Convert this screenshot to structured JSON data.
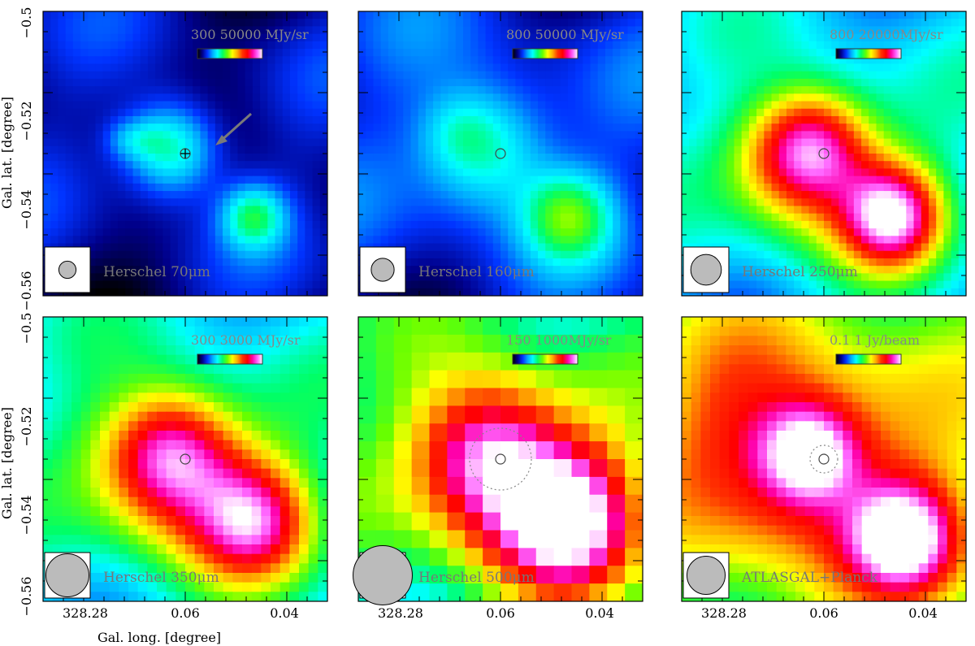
{
  "axes": {
    "ylabel": "Gal. lat. [degree]",
    "xlabel": "Gal. long. [degree]",
    "yticks": [
      "−0.5",
      "−0.52",
      "−0.54",
      "−0.56"
    ],
    "xticks": [
      "328.28",
      "0.06",
      "0.04"
    ]
  },
  "panels": [
    {
      "id": "p70",
      "label": "Herschel  70μm",
      "cbar": "300 50000 MJy/sr",
      "beam": 0.18,
      "blobs": [
        [
          0.45,
          0.48,
          0.35,
          0.12
        ],
        [
          0.74,
          0.72,
          0.26,
          0.08
        ],
        [
          0.28,
          0.45,
          0.08,
          0.05
        ],
        [
          0.36,
          0.45,
          0.06,
          0.05
        ]
      ],
      "base": 0.08,
      "crosshair": true,
      "arrow": true,
      "dotted_ring": false
    },
    {
      "id": "p160",
      "label": "Herschel  160μm",
      "cbar": "800  50000 MJy/sr",
      "beam": 0.24,
      "blobs": [
        [
          0.45,
          0.48,
          0.3,
          0.16
        ],
        [
          0.74,
          0.72,
          0.28,
          0.11
        ],
        [
          0.35,
          0.42,
          0.07,
          0.09
        ]
      ],
      "base": 0.12,
      "crosshair": false,
      "arrow": false,
      "dotted_ring": false
    },
    {
      "id": "p250",
      "label": "Herschel  250μm",
      "cbar": "800  20000MJy/sr",
      "beam": 0.32,
      "blobs": [
        [
          0.45,
          0.48,
          0.55,
          0.14
        ],
        [
          0.74,
          0.72,
          0.6,
          0.12
        ],
        [
          0.55,
          0.6,
          0.25,
          0.22
        ],
        [
          0.3,
          0.55,
          0.1,
          0.15
        ]
      ],
      "base": 0.25,
      "crosshair": false,
      "arrow": false,
      "dotted_ring": false
    },
    {
      "id": "p350",
      "label": "Herschel  350μm",
      "cbar": "300 3000 MJy/sr",
      "beam": 0.45,
      "blobs": [
        [
          0.45,
          0.48,
          0.45,
          0.15
        ],
        [
          0.74,
          0.72,
          0.45,
          0.14
        ],
        [
          0.55,
          0.6,
          0.3,
          0.22
        ],
        [
          0.3,
          0.5,
          0.1,
          0.18
        ]
      ],
      "base": 0.28,
      "crosshair": false,
      "arrow": false,
      "dotted_ring": false
    },
    {
      "id": "p500",
      "label": "Herschel  500μm",
      "cbar": "150  1000MJy/sr",
      "beam": 0.62,
      "blobs": [
        [
          0.45,
          0.48,
          0.5,
          0.18
        ],
        [
          0.74,
          0.72,
          0.55,
          0.17
        ],
        [
          0.58,
          0.6,
          0.25,
          0.25
        ]
      ],
      "base": 0.35,
      "crosshair": false,
      "arrow": false,
      "dotted_ring": true
    },
    {
      "id": "patl",
      "label": "ATLASGAL+Planck",
      "cbar": "0.1   1 Jy/beam",
      "beam": 0.4,
      "blobs": [
        [
          0.45,
          0.48,
          0.45,
          0.12
        ],
        [
          0.78,
          0.78,
          0.55,
          0.13
        ],
        [
          0.55,
          0.55,
          0.25,
          0.3
        ],
        [
          0.3,
          0.5,
          0.15,
          0.25
        ],
        [
          0.15,
          0.3,
          0.1,
          0.2
        ]
      ],
      "base": 0.42,
      "crosshair": false,
      "arrow": false,
      "dotted_ring": true
    }
  ],
  "colormap_stops": [
    "#000000",
    "#00008b",
    "#0033ff",
    "#00aaff",
    "#00ffff",
    "#00ff66",
    "#66ff00",
    "#ffff00",
    "#ffaa00",
    "#ff3300",
    "#ff0000",
    "#ff00aa",
    "#ff66ff",
    "#ffffff"
  ]
}
